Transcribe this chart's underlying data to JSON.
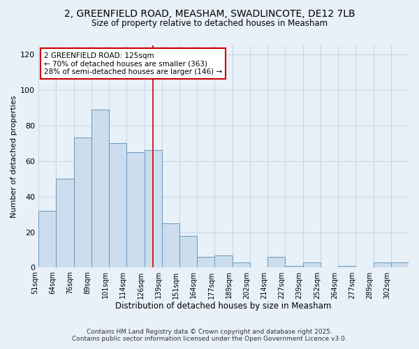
{
  "title_line1": "2, GREENFIELD ROAD, MEASHAM, SWADLINCOTE, DE12 7LB",
  "title_line2": "Size of property relative to detached houses in Measham",
  "xlabel": "Distribution of detached houses by size in Measham",
  "ylabel": "Number of detached properties",
  "bar_labels": [
    "51sqm",
    "64sqm",
    "76sqm",
    "89sqm",
    "101sqm",
    "114sqm",
    "126sqm",
    "139sqm",
    "151sqm",
    "164sqm",
    "177sqm",
    "189sqm",
    "202sqm",
    "214sqm",
    "227sqm",
    "239sqm",
    "252sqm",
    "264sqm",
    "277sqm",
    "289sqm",
    "302sqm"
  ],
  "bar_values": [
    32,
    50,
    73,
    89,
    70,
    65,
    66,
    25,
    18,
    6,
    7,
    3,
    0,
    6,
    1,
    3,
    0,
    1,
    0,
    3,
    3
  ],
  "bar_color": "#ccdded",
  "bar_edge_color": "#6699bb",
  "grid_color": "#c8d8e8",
  "bg_color": "#e8f0f8",
  "vline_x": 6.5,
  "vline_color": "#cc0000",
  "annotation_text": "2 GREENFIELD ROAD: 125sqm\n← 70% of detached houses are smaller (363)\n28% of semi-detached houses are larger (146) →",
  "annotation_box_color": "#ffffff",
  "annotation_box_edge": "#cc0000",
  "ylim": [
    0,
    125
  ],
  "yticks": [
    0,
    20,
    40,
    60,
    80,
    100,
    120
  ],
  "footer_line1": "Contains HM Land Registry data © Crown copyright and database right 2025.",
  "footer_line2": "Contains public sector information licensed under the Open Government Licence v3.0."
}
